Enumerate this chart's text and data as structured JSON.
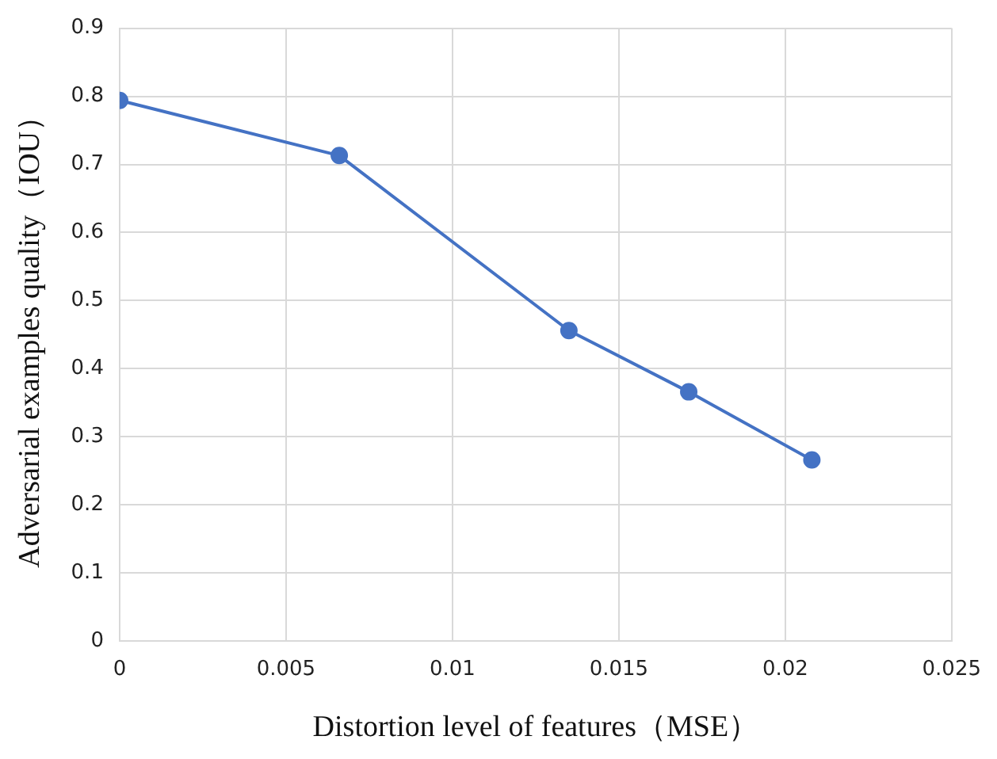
{
  "chart_data": {
    "type": "line",
    "xlabel": "Distortion level of features（MSE）",
    "ylabel": "Adversarial examples quality（IOU）",
    "x": [
      0,
      0.0066,
      0.0135,
      0.0171,
      0.0208
    ],
    "series": [
      {
        "color": "#4472c4",
        "values": [
          0.794,
          0.713,
          0.456,
          0.366,
          0.266
        ]
      }
    ],
    "xlim": [
      0,
      0.025
    ],
    "xticks": [
      0,
      0.005,
      0.01,
      0.015,
      0.02,
      0.025
    ],
    "ylim": [
      0,
      0.9
    ],
    "yticks": [
      0,
      0.1,
      0.2,
      0.3,
      0.4,
      0.5,
      0.6,
      0.7,
      0.8,
      0.9
    ],
    "grid": true,
    "legend": false,
    "marker": "circle",
    "line_style": "solid"
  }
}
